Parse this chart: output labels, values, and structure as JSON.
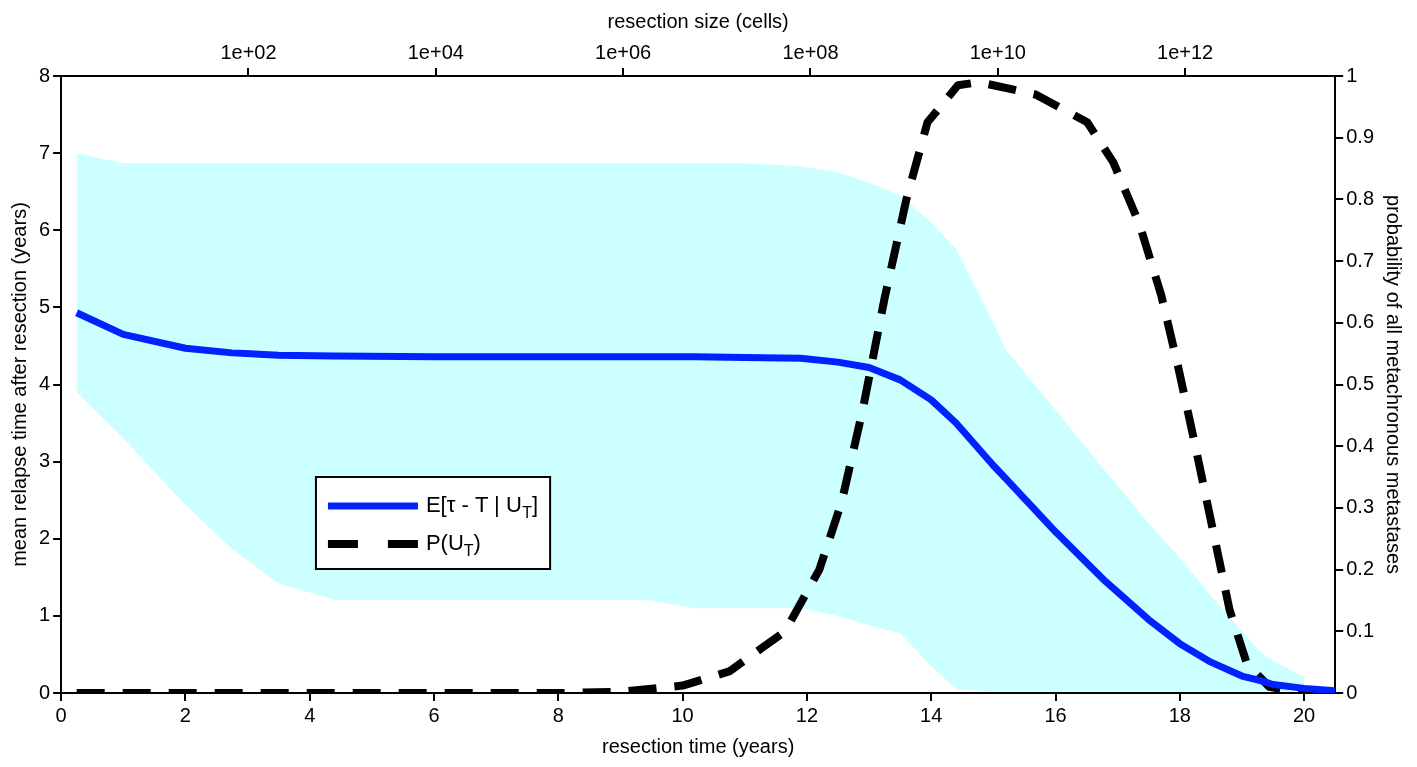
{
  "chart_data": {
    "type": "line",
    "xlabel": "resection time (years)",
    "ylabel": "mean relapse time after resection (years)",
    "y2label": "probability of all metachronous metastases",
    "x2label": "resection size (cells)",
    "xlim": [
      0,
      20.5
    ],
    "xticks": [
      0,
      2,
      4,
      6,
      8,
      10,
      12,
      14,
      16,
      18,
      20
    ],
    "ylim": [
      0,
      8
    ],
    "yticks": [
      0,
      1,
      2,
      3,
      4,
      5,
      6,
      7,
      8
    ],
    "y2lim": [
      0,
      1
    ],
    "y2ticks": [
      0,
      0.1,
      0.2,
      0.3,
      0.4,
      0.5,
      0.6,
      0.7,
      0.8,
      0.9,
      1
    ],
    "x2lim": [
      1,
      40000000000000.0
    ],
    "x2ticks": [
      {
        "value": 100,
        "label": "1e+02"
      },
      {
        "value": 10000,
        "label": "1e+04"
      },
      {
        "value": 1000000,
        "label": "1e+06"
      },
      {
        "value": 100000000,
        "label": "1e+08"
      },
      {
        "value": 10000000000,
        "label": "1e+10"
      },
      {
        "value": 1000000000000,
        "label": "1e+12"
      }
    ],
    "log": "x2",
    "grid": false,
    "legend": "left",
    "marker": "none",
    "series": [
      {
        "name": "E[τ - T | U$_{T}$]",
        "color": "#0022ff",
        "line_style": "solid",
        "x": [
          0.25,
          1,
          2,
          2.75,
          3.5,
          4.4,
          6,
          8,
          9.4,
          10.2,
          11,
          11.9,
          12.5,
          13,
          13.5,
          14,
          14.4,
          15,
          15.2,
          16,
          16.8,
          17.5,
          18,
          18.5,
          19,
          19.3,
          19.5,
          20,
          20.5
        ],
        "values": [
          4.93,
          4.65,
          4.47,
          4.41,
          4.38,
          4.37,
          4.36,
          4.36,
          4.36,
          4.36,
          4.35,
          4.34,
          4.29,
          4.22,
          4.06,
          3.8,
          3.5,
          2.95,
          2.78,
          2.09,
          1.45,
          0.95,
          0.64,
          0.4,
          0.22,
          0.16,
          0.11,
          0.06,
          0.03
        ],
        "upper": [
          7.0,
          6.87,
          6.87,
          6.87,
          6.87,
          6.87,
          6.87,
          6.87,
          6.87,
          6.87,
          6.87,
          6.83,
          6.75,
          6.62,
          6.45,
          6.1,
          5.76,
          4.8,
          4.45,
          3.67,
          2.88,
          2.2,
          1.75,
          1.26,
          0.8,
          0.53,
          0.42,
          0.2,
          null
        ],
        "lower": [
          3.9,
          3.3,
          2.44,
          1.87,
          1.42,
          1.21,
          1.21,
          1.21,
          1.21,
          1.1,
          1.1,
          1.1,
          1.0,
          0.88,
          0.77,
          0.35,
          0.05,
          0.02,
          0.02,
          0.02,
          0.02,
          0.02,
          0.02,
          0.02,
          0.02,
          0.02,
          0.02,
          0.02,
          null
        ]
      },
      {
        "name": "P(U$_{T}$)",
        "color": "#000000",
        "line_style": "dashed",
        "axis": "y2",
        "x": [
          0.25,
          8,
          9,
          10,
          10.75,
          11.65,
          12.2,
          12.56,
          12.9,
          13.25,
          13.6,
          13.94,
          14.43,
          14.77,
          15.68,
          16.51,
          16.93,
          17.35,
          17.7,
          17.97,
          18.25,
          18.53,
          18.8,
          19.08,
          19.44,
          20,
          20.5
        ],
        "values": [
          0,
          0,
          0.002,
          0.012,
          0.035,
          0.1,
          0.2,
          0.31,
          0.46,
          0.64,
          0.8,
          0.925,
          0.985,
          0.99,
          0.97,
          0.925,
          0.86,
          0.76,
          0.645,
          0.53,
          0.4,
          0.265,
          0.135,
          0.047,
          0.01,
          0,
          0
        ]
      }
    ]
  }
}
